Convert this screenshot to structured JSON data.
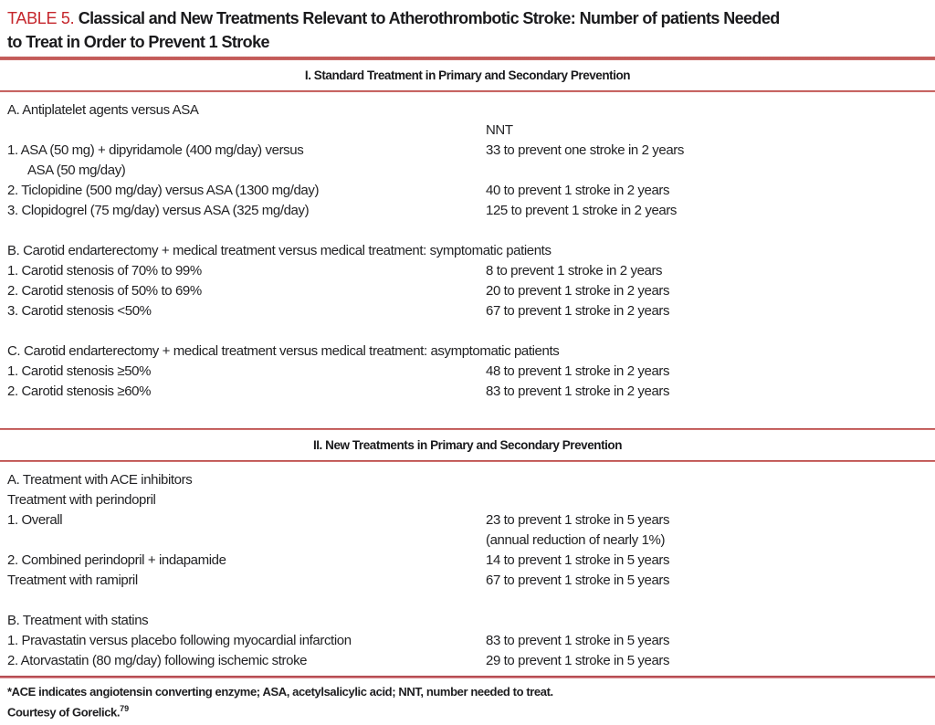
{
  "page": {
    "title_label": "TABLE 5.",
    "title_line1": "Classical and New Treatments Relevant to Atherothrombotic Stroke: Number of patients Needed",
    "title_line2": "to Treat in Order to Prevent 1 Stroke"
  },
  "sections": [
    {
      "header": "I. Standard Treatment in Primary and Secondary Prevention",
      "blocks": [
        {
          "name": "antiplatelet-agents-vs-asa",
          "rows": [
            {
              "left": "A. Antiplatelet agents versus ASA",
              "right": ""
            },
            {
              "left": "",
              "right": "NNT"
            },
            {
              "left": "1. ASA (50 mg) + dipyridamole (400 mg/day) versus",
              "right": "33 to prevent one stroke in 2 years"
            },
            {
              "left": "ASA (50 mg/day)",
              "right": "",
              "indent": true
            },
            {
              "left": "2. Ticlopidine (500 mg/day) versus ASA (1300 mg/day)",
              "right": "40 to prevent 1 stroke in 2 years"
            },
            {
              "left": "3. Clopidogrel (75 mg/day) versus ASA (325 mg/day)",
              "right": "125 to prevent 1 stroke in 2 years"
            }
          ]
        },
        {
          "name": "carotid-endarterectomy-symptomatic",
          "rows": [
            {
              "left": "B. Carotid endarterectomy + medical treatment versus medical treatment: symptomatic patients",
              "right": ""
            },
            {
              "left": "1. Carotid stenosis of 70% to 99%",
              "right": "8 to prevent 1 stroke in 2 years"
            },
            {
              "left": "2. Carotid stenosis of 50% to 69%",
              "right": "20 to prevent 1 stroke in 2 years"
            },
            {
              "left": "3. Carotid stenosis <50%",
              "right": "67 to prevent 1 stroke in 2 years"
            }
          ]
        },
        {
          "name": "carotid-endarterectomy-asymptomatic",
          "rows": [
            {
              "left": "C. Carotid endarterectomy + medical treatment versus medical treatment: asymptomatic patients",
              "right": ""
            },
            {
              "left": "1. Carotid stenosis ≥50%",
              "right": "48 to prevent 1 stroke in 2 years"
            },
            {
              "left": "2. Carotid stenosis ≥60%",
              "right": "83 to prevent 1 stroke in 2 years"
            }
          ]
        }
      ]
    },
    {
      "header": "II. New Treatments in Primary and Secondary Prevention",
      "blocks": [
        {
          "name": "ace-inhibitors",
          "rows": [
            {
              "left": "A. Treatment with ACE inhibitors",
              "right": ""
            },
            {
              "left": "Treatment with perindopril",
              "right": ""
            },
            {
              "left": "1. Overall",
              "right": "23 to prevent 1 stroke in 5 years"
            },
            {
              "left": "",
              "right": "(annual reduction of nearly 1%)"
            },
            {
              "left": "2. Combined perindopril + indapamide",
              "right": "14 to prevent 1 stroke in 5 years"
            },
            {
              "left": "Treatment with ramipril",
              "right": "67 to prevent 1 stroke in 5 years"
            }
          ]
        },
        {
          "name": "statins",
          "rows": [
            {
              "left": "B. Treatment with statins",
              "right": ""
            },
            {
              "left": "1. Pravastatin versus placebo following myocardial infarction",
              "right": "83 to prevent 1 stroke in 5 years"
            },
            {
              "left": "2. Atorvastatin (80 mg/day) following ischemic stroke",
              "right": "29 to prevent 1 stroke in 5 years"
            }
          ]
        }
      ]
    }
  ],
  "footnote": {
    "line1": "*ACE indicates angiotensin converting enzyme; ASA, acetylsalicylic acid; NNT, number needed to treat.",
    "line2": "Courtesy of Gorelick.",
    "line2_superscript": "79"
  },
  "colors": {
    "accent_red": "#c5262c",
    "rule_red": "#b2413f",
    "footer_rule_red": "#a63d42",
    "text": "#1d1d1f"
  }
}
